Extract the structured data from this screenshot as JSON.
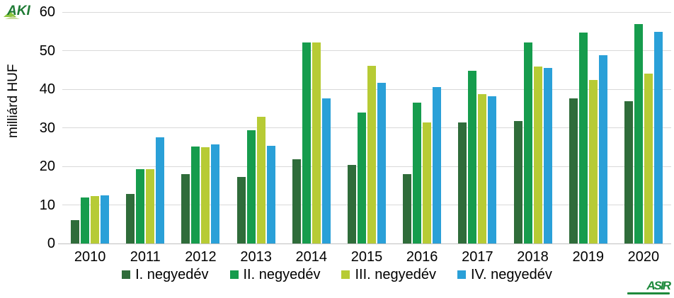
{
  "branding": {
    "top_left_logo": "AKI",
    "bottom_right_logo": "ASIR"
  },
  "chart_data": {
    "type": "bar",
    "title": "",
    "xlabel": "",
    "ylabel": "milliárd HUF",
    "ylim": [
      0,
      60
    ],
    "yticks": [
      0,
      10,
      20,
      30,
      40,
      50,
      60
    ],
    "grid": true,
    "legend_position": "bottom",
    "categories": [
      "2010",
      "2011",
      "2012",
      "2013",
      "2014",
      "2015",
      "2016",
      "2017",
      "2018",
      "2019",
      "2020"
    ],
    "series": [
      {
        "name": "I. negyedév",
        "color": "#2f6c3a",
        "values": [
          6.1,
          12.8,
          18.0,
          17.3,
          21.9,
          20.4,
          18.0,
          31.4,
          31.8,
          37.6,
          36.8
        ]
      },
      {
        "name": "II. negyedév",
        "color": "#169c4d",
        "values": [
          11.9,
          19.2,
          25.1,
          29.4,
          52.1,
          33.9,
          36.6,
          44.7,
          52.1,
          54.7,
          56.9
        ]
      },
      {
        "name": "III. negyedév",
        "color": "#b7cb35",
        "values": [
          12.3,
          19.2,
          25.0,
          32.8,
          52.1,
          46.0,
          31.4,
          38.8,
          45.9,
          42.3,
          44.0
        ]
      },
      {
        "name": "IV. negyedév",
        "color": "#2aa0d8",
        "values": [
          12.5,
          27.5,
          25.7,
          25.4,
          37.7,
          41.7,
          40.5,
          38.1,
          45.5,
          48.8,
          54.9
        ]
      }
    ]
  }
}
